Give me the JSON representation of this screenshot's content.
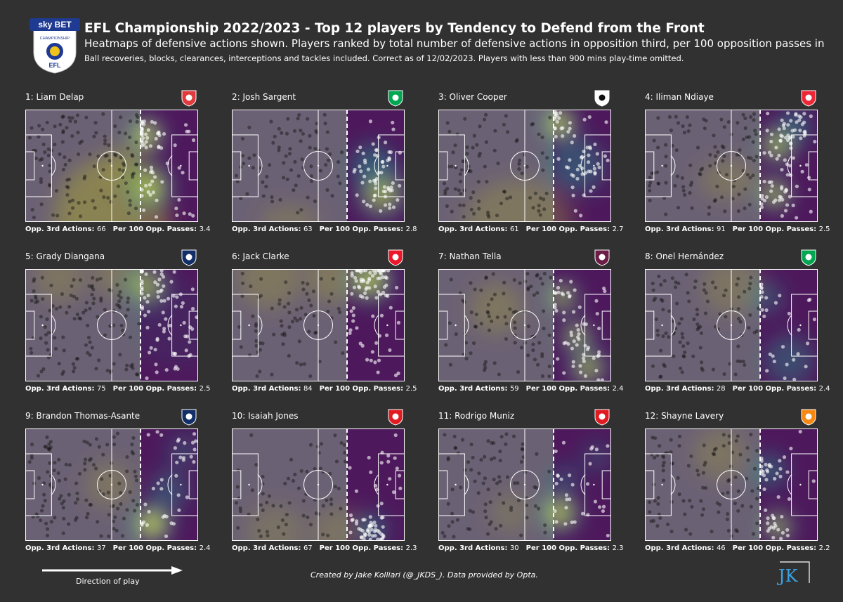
{
  "header": {
    "title": "EFL Championship 2022/2023 - Top 12 players by Tendency to Defend from the Front",
    "subtitle": "Heatmaps of defensive actions shown. Players ranked by total number of defensive actions in opposition third, per 100 opposition passes in",
    "note": "Ball recoveries, blocks, clearances, interceptions and tackles included. Correct as of 12/02/2023. Players with less than 900 mins play-time omitted.",
    "logo": {
      "top": "sky BET",
      "middle": "CHAMPIONSHIP",
      "bottom": "EFL"
    }
  },
  "labels": {
    "opp_third": "Opp. 3rd Actions:",
    "per100": "Per 100 Opp. Passes:"
  },
  "chart_data": {
    "type": "heatmap",
    "attacking_direction": "left-to-right",
    "colormap": "viridis",
    "players": [
      {
        "rank": "1:",
        "name": "Liam Delap",
        "opp_third_actions": 66,
        "per_100_opp_passes": 3.4,
        "club_badge": "stoke-city-badge"
      },
      {
        "rank": "2:",
        "name": "Josh Sargent",
        "opp_third_actions": 63,
        "per_100_opp_passes": 2.8,
        "club_badge": "norwich-city-badge"
      },
      {
        "rank": "3:",
        "name": "Oliver Cooper",
        "opp_third_actions": 61,
        "per_100_opp_passes": 2.7,
        "club_badge": "swansea-city-badge"
      },
      {
        "rank": "4:",
        "name": "Iliman Ndiaye",
        "opp_third_actions": 91,
        "per_100_opp_passes": 2.5,
        "club_badge": "sheffield-united-badge"
      },
      {
        "rank": "5:",
        "name": "Grady Diangana",
        "opp_third_actions": 75,
        "per_100_opp_passes": 2.5,
        "club_badge": "west-brom-badge"
      },
      {
        "rank": "6:",
        "name": "Jack Clarke",
        "opp_third_actions": 84,
        "per_100_opp_passes": 2.5,
        "club_badge": "sunderland-badge"
      },
      {
        "rank": "7:",
        "name": "Nathan Tella",
        "opp_third_actions": 59,
        "per_100_opp_passes": 2.4,
        "club_badge": "burnley-badge"
      },
      {
        "rank": "8:",
        "name": "Onel Hernández",
        "opp_third_actions": 28,
        "per_100_opp_passes": 2.4,
        "club_badge": "norwich-city-badge"
      },
      {
        "rank": "9:",
        "name": "Brandon Thomas-Asante",
        "opp_third_actions": 37,
        "per_100_opp_passes": 2.4,
        "club_badge": "west-brom-badge"
      },
      {
        "rank": "10:",
        "name": "Isaiah Jones",
        "opp_third_actions": 67,
        "per_100_opp_passes": 2.3,
        "club_badge": "middlesbrough-badge"
      },
      {
        "rank": "11:",
        "name": "Rodrigo Muniz",
        "opp_third_actions": 30,
        "per_100_opp_passes": 2.3,
        "club_badge": "middlesbrough-badge"
      },
      {
        "rank": "12:",
        "name": "Shayne Lavery",
        "opp_third_actions": 46,
        "per_100_opp_passes": 2.2,
        "club_badge": "blackpool-badge"
      }
    ]
  },
  "footer": {
    "direction": "Direction of play",
    "credit": "Created by Jake Kolliari (@_JKDS_). Data provided by Opta.",
    "signature": "JK"
  },
  "colors": {
    "background": "#313131",
    "pitch_base": "#6b6174",
    "heat_hot": "#fde725",
    "heat_mid": "#21918c",
    "heat_cold": "#440154",
    "lines": "#ffffff",
    "stoke": "#e03a3e",
    "norwich": "#00a650",
    "swansea": "#ffffff",
    "sheffield": "#ee2737",
    "westbrom": "#122f67",
    "sunderland": "#eb172b",
    "burnley": "#6c1d45",
    "middlesbrough": "#e11b22",
    "blackpool": "#f68712"
  }
}
